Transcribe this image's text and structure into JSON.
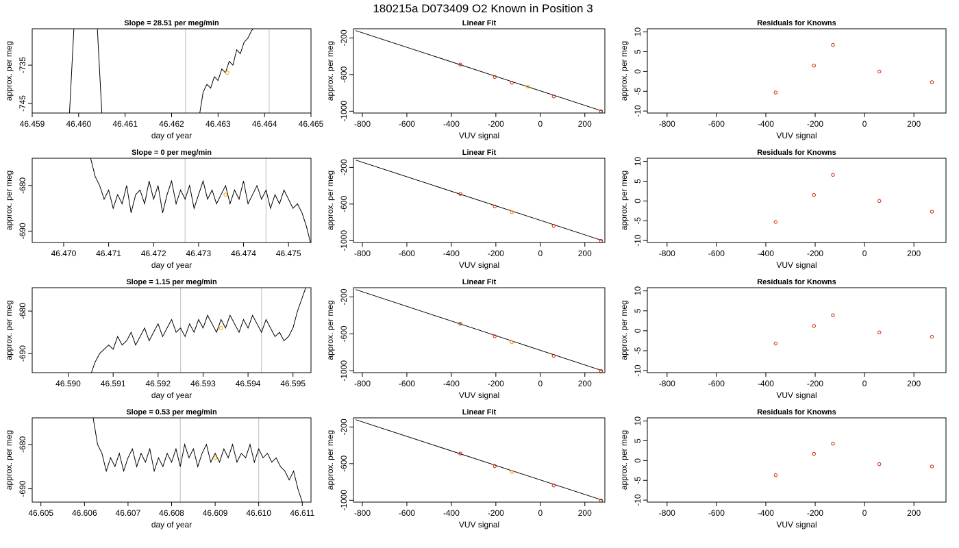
{
  "page": {
    "title": "180215a     D073409   O2 Known in Position  3"
  },
  "colors": {
    "trace": "#000000",
    "fit_line": "#000000",
    "known_point": "#cc2200",
    "current_point": "#ffa500",
    "window_line": "#c8c8c8"
  },
  "chart_data": [
    {
      "type": "line",
      "title": "Slope =  28.51  per meg/min",
      "xlabel": "day of year",
      "ylabel": "approx. per meg",
      "xlim": [
        46.459,
        46.465
      ],
      "ylim": [
        -747.5,
        -725.5
      ],
      "xticks": [
        "46.459",
        "46.460",
        "46.461",
        "46.462",
        "46.463",
        "46.464",
        "46.465"
      ],
      "xtick_values": [
        46.459,
        46.46,
        46.461,
        46.462,
        46.463,
        46.464,
        46.465
      ],
      "yticks": [
        "-745",
        "-735"
      ],
      "ytick_values": [
        -745,
        -735
      ],
      "vlines": [
        46.4623,
        46.4641
      ],
      "series": [
        {
          "x": [
            46.4598,
            46.4599
          ],
          "y": [
            -748,
            -725
          ]
        },
        {
          "x": [
            46.4604,
            46.4605
          ],
          "y": [
            -725,
            -748
          ]
        },
        {
          "x": [
            46.4626,
            46.46268,
            46.46276,
            46.46284,
            46.46292,
            46.463,
            46.46308,
            46.46316,
            46.46324,
            46.46332,
            46.4634,
            46.46348,
            46.46356,
            46.46364,
            46.46372,
            46.4638
          ],
          "y": [
            -748,
            -742,
            -740,
            -741,
            -738,
            -739,
            -736,
            -737,
            -734,
            -735,
            -731,
            -732,
            -729,
            -728,
            -726,
            -725
          ]
        }
      ],
      "highlight": {
        "x": 46.4632,
        "y": -737
      }
    },
    {
      "type": "line",
      "title": "Slope =  0  per meg/min",
      "xlabel": "day of year",
      "ylabel": "approx. per meg",
      "xlim": [
        46.4693,
        46.4755
      ],
      "ylim": [
        -692.5,
        -674
      ],
      "xticks": [
        "46.470",
        "46.471",
        "46.472",
        "46.473",
        "46.474",
        "46.475"
      ],
      "xtick_values": [
        46.47,
        46.471,
        46.472,
        46.473,
        46.474,
        46.475
      ],
      "yticks": [
        "-690",
        "-680"
      ],
      "ytick_values": [
        -690,
        -680
      ],
      "vlines": [
        46.4727,
        46.4745
      ],
      "series": [
        {
          "x": [
            46.4706,
            46.4707,
            46.4708,
            46.4709,
            46.471,
            46.4711,
            46.4712,
            46.4713,
            46.4714,
            46.4715,
            46.4716,
            46.4717,
            46.4718,
            46.4719,
            46.472,
            46.4721,
            46.4722,
            46.4723,
            46.4724,
            46.4725,
            46.4726,
            46.4727,
            46.4728,
            46.4729,
            46.473,
            46.4731,
            46.4732,
            46.4733,
            46.4734,
            46.4735,
            46.4736,
            46.4737,
            46.4738,
            46.4739,
            46.474,
            46.4741,
            46.4742,
            46.4743,
            46.4744,
            46.4745,
            46.4746,
            46.4747,
            46.4748,
            46.4749,
            46.475,
            46.4751,
            46.4752,
            46.4753,
            46.4754,
            46.4755
          ],
          "y": [
            -674,
            -678,
            -680,
            -683,
            -681,
            -685,
            -682,
            -684,
            -680,
            -686,
            -682,
            -681,
            -684,
            -679,
            -683,
            -680,
            -686,
            -682,
            -679,
            -684,
            -681,
            -683,
            -680,
            -685,
            -682,
            -679,
            -683,
            -681,
            -684,
            -682,
            -680,
            -684,
            -681,
            -683,
            -679,
            -684,
            -682,
            -680,
            -683,
            -681,
            -685,
            -682,
            -684,
            -681,
            -683,
            -685,
            -684,
            -686,
            -689,
            -693
          ]
        }
      ],
      "highlight": {
        "x": 46.4736,
        "y": -682
      }
    },
    {
      "type": "line",
      "title": "Slope =  1.15  per meg/min",
      "xlabel": "day of year",
      "ylabel": "approx. per meg",
      "xlim": [
        46.5892,
        46.5954
      ],
      "ylim": [
        -694.5,
        -674.5
      ],
      "xticks": [
        "46.590",
        "46.591",
        "46.592",
        "46.593",
        "46.594",
        "46.595"
      ],
      "xtick_values": [
        46.59,
        46.591,
        46.592,
        46.593,
        46.594,
        46.595
      ],
      "yticks": [
        "-690",
        "-680"
      ],
      "ytick_values": [
        -690,
        -680
      ],
      "vlines": [
        46.5925,
        46.5943
      ],
      "series": [
        {
          "x": [
            46.5905,
            46.5906,
            46.5907,
            46.5908,
            46.5909,
            46.591,
            46.5911,
            46.5912,
            46.5913,
            46.5914,
            46.5915,
            46.5916,
            46.5917,
            46.5918,
            46.5919,
            46.592,
            46.5921,
            46.5922,
            46.5923,
            46.5924,
            46.5925,
            46.5926,
            46.5927,
            46.5928,
            46.5929,
            46.593,
            46.5931,
            46.5932,
            46.5933,
            46.5934,
            46.5935,
            46.5936,
            46.5937,
            46.5938,
            46.5939,
            46.594,
            46.5941,
            46.5942,
            46.5943,
            46.5944,
            46.5945,
            46.5946,
            46.5947,
            46.5948,
            46.5949,
            46.595,
            46.5951,
            46.5952,
            46.5953
          ],
          "y": [
            -695,
            -692,
            -690,
            -689,
            -688,
            -689,
            -686,
            -688,
            -687,
            -685,
            -688,
            -686,
            -684,
            -687,
            -685,
            -683,
            -686,
            -684,
            -682,
            -685,
            -684,
            -686,
            -683,
            -685,
            -682,
            -684,
            -681,
            -683,
            -685,
            -682,
            -684,
            -681,
            -683,
            -685,
            -682,
            -684,
            -681,
            -683,
            -685,
            -682,
            -684,
            -686,
            -685,
            -687,
            -686,
            -684,
            -680,
            -677,
            -674
          ]
        }
      ],
      "highlight": {
        "x": 46.5934,
        "y": -684
      }
    },
    {
      "type": "line",
      "title": "Slope =  0.53  per meg/min",
      "xlabel": "day of year",
      "ylabel": "approx. per meg",
      "xlim": [
        46.6048,
        46.6112
      ],
      "ylim": [
        -693,
        -674
      ],
      "xticks": [
        "46.605",
        "46.606",
        "46.607",
        "46.608",
        "46.609",
        "46.610",
        "46.611"
      ],
      "xtick_values": [
        46.605,
        46.606,
        46.607,
        46.608,
        46.609,
        46.61,
        46.611
      ],
      "yticks": [
        "-690",
        "-680"
      ],
      "ytick_values": [
        -690,
        -680
      ],
      "vlines": [
        46.6082,
        46.61
      ],
      "series": [
        {
          "x": [
            46.6062,
            46.6063,
            46.6064,
            46.6065,
            46.6066,
            46.6067,
            46.6068,
            46.6069,
            46.607,
            46.6071,
            46.6072,
            46.6073,
            46.6074,
            46.6075,
            46.6076,
            46.6077,
            46.6078,
            46.6079,
            46.608,
            46.6081,
            46.6082,
            46.6083,
            46.6084,
            46.6085,
            46.6086,
            46.6087,
            46.6088,
            46.6089,
            46.609,
            46.6091,
            46.6092,
            46.6093,
            46.6094,
            46.6095,
            46.6096,
            46.6097,
            46.6098,
            46.6099,
            46.61,
            46.6101,
            46.6102,
            46.6103,
            46.6104,
            46.6105,
            46.6106,
            46.6107,
            46.6108,
            46.6109,
            46.611
          ],
          "y": [
            -674,
            -680,
            -682,
            -686,
            -683,
            -685,
            -682,
            -686,
            -683,
            -681,
            -685,
            -682,
            -684,
            -681,
            -686,
            -683,
            -685,
            -682,
            -684,
            -681,
            -685,
            -680,
            -683,
            -681,
            -685,
            -682,
            -680,
            -684,
            -682,
            -684,
            -681,
            -683,
            -680,
            -684,
            -682,
            -683,
            -680,
            -684,
            -681,
            -683,
            -682,
            -684,
            -683,
            -685,
            -686,
            -688,
            -686,
            -690,
            -693
          ]
        }
      ],
      "highlight": {
        "x": 46.609,
        "y": -683
      }
    }
  ],
  "linear_fit": {
    "title": "Linear Fit",
    "xlabel": "VUV signal",
    "ylabel": "approx. per meg",
    "xlim": [
      -840,
      290
    ],
    "ylim": [
      -1020,
      -100
    ],
    "xticks": [
      "-800",
      "-600",
      "-400",
      "-200",
      "0",
      "200"
    ],
    "xtick_values": [
      -800,
      -600,
      -400,
      -200,
      0,
      200
    ],
    "yticks": [
      "-1000",
      "-600",
      "-200"
    ],
    "ytick_values": [
      -1000,
      -600,
      -200
    ],
    "line": {
      "x": [
        -830,
        280
      ],
      "y": [
        -120,
        -1000
      ]
    },
    "panels": [
      {
        "known": {
          "x": [
            -360,
            -205,
            -128,
            60,
            273
          ],
          "y": [
            -490,
            -626,
            -689,
            -838,
            -1002
          ]
        },
        "current": {
          "x": -56,
          "y": -732
        }
      },
      {
        "known": {
          "x": [
            -360,
            -205,
            -128,
            60,
            273
          ],
          "y": [
            -490,
            -626,
            -689,
            -838,
            -1002
          ]
        },
        "current": {
          "x": -128,
          "y": -689
        }
      },
      {
        "known": {
          "x": [
            -360,
            -205,
            -128,
            60,
            273
          ],
          "y": [
            -490,
            -626,
            -689,
            -838,
            -1002
          ]
        },
        "current": {
          "x": -128,
          "y": -689
        }
      },
      {
        "known": {
          "x": [
            -360,
            -205,
            -128,
            60,
            273
          ],
          "y": [
            -490,
            -626,
            -689,
            -838,
            -1002
          ]
        },
        "current": {
          "x": -128,
          "y": -689
        }
      }
    ]
  },
  "residuals": {
    "title": "Residuals for Knowns",
    "xlabel": "VUV signal",
    "ylabel": "approx. per meg",
    "xlim": [
      -880,
      330
    ],
    "ylim": [
      -10.5,
      10.8
    ],
    "xticks": [
      "-800",
      "-600",
      "-400",
      "-200",
      "0",
      "200"
    ],
    "xtick_values": [
      -800,
      -600,
      -400,
      -200,
      0,
      200
    ],
    "yticks": [
      "-10",
      "-5",
      "0",
      "5",
      "10"
    ],
    "ytick_values": [
      -10,
      -5,
      0,
      5,
      10
    ],
    "panels": [
      {
        "x": [
          -360,
          -205,
          -128,
          60,
          273
        ],
        "y": [
          -5.3,
          1.5,
          6.7,
          0,
          -2.7
        ]
      },
      {
        "x": [
          -360,
          -205,
          -128,
          60,
          273
        ],
        "y": [
          -5.3,
          1.5,
          6.6,
          0,
          -2.7
        ]
      },
      {
        "x": [
          -360,
          -205,
          -128,
          60,
          273
        ],
        "y": [
          -3.2,
          1.2,
          3.9,
          -0.4,
          -1.5
        ]
      },
      {
        "x": [
          -360,
          -205,
          -128,
          60,
          273
        ],
        "y": [
          -3.7,
          1.7,
          4.3,
          -0.9,
          -1.5
        ]
      }
    ]
  }
}
